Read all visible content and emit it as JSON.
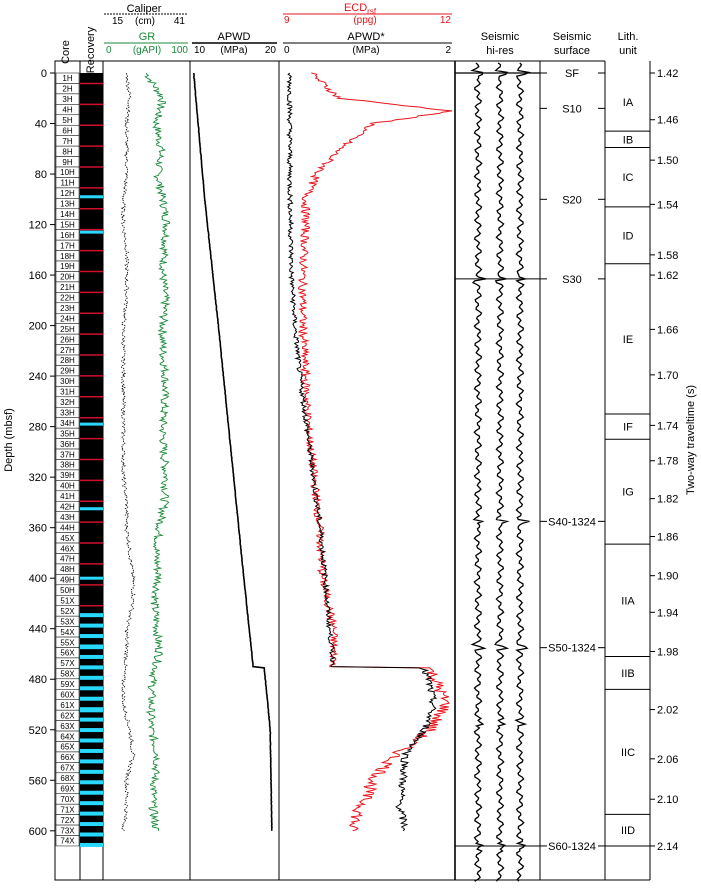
{
  "colors": {
    "gr": "#1a8a3a",
    "ecd": "#e8141c",
    "caliper": "#000000",
    "apwd": "#000000",
    "recovery_full": "#000000",
    "recovery_marker": "#d0102a",
    "recovery_gap": "#29d8ff"
  },
  "labels": {
    "core": "Core",
    "recovery": "Recovery",
    "caliper": "Caliper",
    "caliper_unit": "(cm)",
    "caliper_min": "15",
    "caliper_max": "41",
    "gr": "GR",
    "gr_unit": "(gAPI)",
    "gr_min": "0",
    "gr_max": "100",
    "apwd": "APWD",
    "apwd_unit": "(MPa)",
    "apwd_min": "10",
    "apwd_max": "20",
    "ecd": "ECD",
    "ecd_sub": "rsf",
    "ecd_unit": "(ppg)",
    "ecd_min": "9",
    "ecd_max": "12",
    "apwd_star": "APWD*",
    "apwd_star_unit": "(MPa)",
    "apwd_star_min": "0",
    "apwd_star_max": "2",
    "seismic_hires_1": "Seismic",
    "seismic_hires_2": "hi-res",
    "seismic_surface_1": "Seismic",
    "seismic_surface_2": "surface",
    "lith_1": "Lith.",
    "lith_2": "unit",
    "depth_axis": "Depth (mbsf)",
    "twt_axis": "Two-way traveltime (s)"
  },
  "cores": [
    "1H",
    "2H",
    "3H",
    "4H",
    "5H",
    "6H",
    "7H",
    "8H",
    "9H",
    "10H",
    "11H",
    "12H",
    "13H",
    "14H",
    "15H",
    "16H",
    "17H",
    "18H",
    "19H",
    "20H",
    "21H",
    "22H",
    "23H",
    "24H",
    "25H",
    "26H",
    "27H",
    "28H",
    "29H",
    "30H",
    "31H",
    "32H",
    "33H",
    "34H",
    "35H",
    "36H",
    "37H",
    "38H",
    "39H",
    "40H",
    "41H",
    "42H",
    "43H",
    "44H",
    "45X",
    "46X",
    "47H",
    "48H",
    "49H",
    "50H",
    "51X",
    "52X",
    "53X",
    "54X",
    "55X",
    "56X",
    "57X",
    "58X",
    "59X",
    "60X",
    "61X",
    "62X",
    "63X",
    "64X",
    "65X",
    "66X",
    "67X",
    "68X",
    "69X",
    "70X",
    "71X",
    "72X",
    "73X",
    "74X"
  ],
  "seismic_surfaces": [
    {
      "label": "SF",
      "depth": 0
    },
    {
      "label": "S10",
      "depth": 28
    },
    {
      "label": "S20",
      "depth": 100
    },
    {
      "label": "S30",
      "depth": 163
    },
    {
      "label": "S40-1324",
      "depth": 355
    },
    {
      "label": "S50-1324",
      "depth": 455
    },
    {
      "label": "S60-1324",
      "depth": 612
    }
  ],
  "lith_units": [
    {
      "label": "IA",
      "top": 0,
      "bottom": 46
    },
    {
      "label": "IB",
      "top": 46,
      "bottom": 59
    },
    {
      "label": "IC",
      "top": 59,
      "bottom": 106
    },
    {
      "label": "ID",
      "top": 106,
      "bottom": 151
    },
    {
      "label": "IE",
      "top": 151,
      "bottom": 270
    },
    {
      "label": "IF",
      "top": 270,
      "bottom": 290
    },
    {
      "label": "IG",
      "top": 290,
      "bottom": 373
    },
    {
      "label": "IIA",
      "top": 373,
      "bottom": 462
    },
    {
      "label": "IIB",
      "top": 462,
      "bottom": 488
    },
    {
      "label": "IIC",
      "top": 488,
      "bottom": 587
    },
    {
      "label": "IID",
      "top": 587,
      "bottom": 612
    }
  ],
  "chart_data": {
    "type": "line",
    "title": "",
    "ylabel": "Depth (mbsf)",
    "y2label": "Two-way traveltime (s)",
    "depth_ticks": [
      0,
      40,
      80,
      120,
      160,
      200,
      240,
      280,
      320,
      360,
      400,
      440,
      480,
      520,
      560,
      600
    ],
    "ylim": [
      0,
      628
    ],
    "twt_ticks": [
      1.42,
      1.46,
      1.5,
      1.54,
      1.58,
      1.62,
      1.66,
      1.7,
      1.74,
      1.78,
      1.82,
      1.86,
      1.9,
      1.94,
      1.98,
      2.02,
      2.06,
      2.1,
      2.14
    ],
    "twt_depths": [
      0,
      37,
      69,
      104,
      144,
      160,
      203,
      239,
      279,
      307,
      337,
      367,
      398,
      427,
      458,
      504,
      543,
      575,
      612
    ],
    "series": [
      {
        "name": "GR",
        "unit": "gAPI",
        "xlim": [
          0,
          100
        ],
        "depth": [
          0,
          20,
          40,
          60,
          80,
          100,
          120,
          140,
          160,
          180,
          200,
          220,
          240,
          260,
          280,
          300,
          320,
          340,
          360,
          380,
          400,
          420,
          440,
          460,
          480,
          500,
          520,
          540,
          560,
          580,
          600
        ],
        "values": [
          50,
          70,
          62,
          68,
          64,
          70,
          75,
          72,
          70,
          73,
          70,
          70,
          73,
          72,
          70,
          71,
          74,
          72,
          66,
          62,
          65,
          60,
          63,
          66,
          58,
          56,
          56,
          64,
          60,
          58,
          62
        ]
      },
      {
        "name": "Caliper",
        "unit": "cm",
        "xlim": [
          15,
          41
        ],
        "depth": [
          0,
          20,
          40,
          60,
          80,
          100,
          120,
          140,
          160,
          180,
          200,
          220,
          240,
          260,
          280,
          300,
          320,
          340,
          360,
          380,
          400,
          420,
          440,
          460,
          480,
          500,
          520,
          540,
          560,
          580,
          600
        ],
        "values": [
          22,
          23,
          22,
          22,
          22,
          21,
          21,
          22,
          22,
          22,
          21,
          21,
          21,
          21,
          21,
          21,
          21,
          22,
          22,
          23,
          24,
          24,
          22,
          22,
          21,
          21,
          23,
          24,
          22,
          22,
          21
        ]
      },
      {
        "name": "APWD",
        "unit": "MPa",
        "xlim": [
          10,
          20
        ],
        "depth": [
          0,
          100,
          200,
          300,
          400,
          470,
          471,
          520,
          560,
          600
        ],
        "values": [
          10.2,
          11.5,
          13.1,
          14.6,
          16.1,
          17.2,
          18.5,
          19.2,
          19.3,
          19.4
        ]
      },
      {
        "name": "ECD",
        "unit": "ppg",
        "xlim": [
          9,
          12
        ],
        "depth": [
          0,
          20,
          30,
          40,
          60,
          80,
          100,
          120,
          160,
          200,
          240,
          280,
          320,
          360,
          400,
          440,
          470,
          471,
          480,
          500,
          520,
          540,
          560,
          580,
          600
        ],
        "values": [
          9.5,
          10.0,
          12.0,
          10.6,
          10.0,
          9.6,
          9.4,
          9.4,
          9.35,
          9.35,
          9.4,
          9.45,
          9.55,
          9.65,
          9.7,
          9.9,
          9.9,
          11.6,
          11.7,
          11.9,
          11.6,
          11.0,
          10.6,
          10.4,
          10.2
        ]
      },
      {
        "name": "APWD*",
        "unit": "MPa",
        "xlim": [
          0,
          2
        ],
        "depth": [
          0,
          40,
          80,
          120,
          160,
          200,
          240,
          280,
          320,
          360,
          400,
          440,
          470,
          471,
          480,
          500,
          520,
          540,
          560,
          580,
          600
        ],
        "values": [
          0.08,
          0.08,
          0.08,
          0.09,
          0.1,
          0.14,
          0.2,
          0.28,
          0.36,
          0.44,
          0.5,
          0.55,
          0.6,
          1.65,
          1.72,
          1.78,
          1.68,
          1.45,
          1.42,
          1.38,
          1.45
        ]
      }
    ]
  }
}
